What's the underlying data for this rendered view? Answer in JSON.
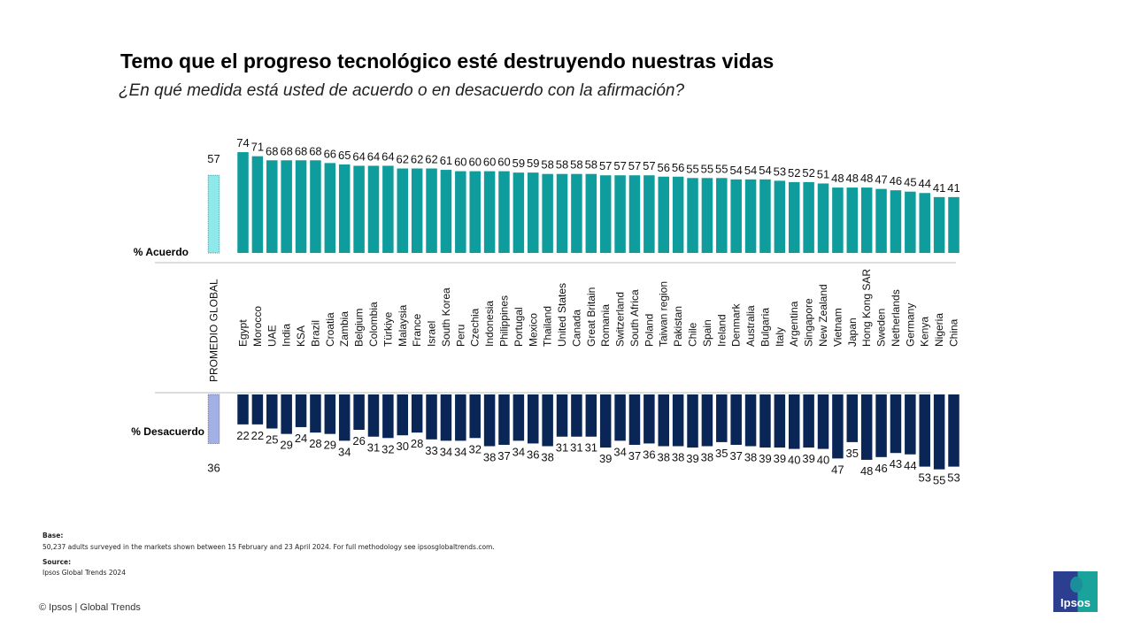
{
  "header": {
    "title": "Temo que el progreso tecnológico esté destruyendo nuestras vidas",
    "subtitle": "¿En qué medida está usted de acuerdo o en desacuerdo con la afirmación?"
  },
  "chart_data": {
    "type": "bar",
    "global_label": "PROMEDIO GLOBAL",
    "global": {
      "agree": 57,
      "disagree": 36
    },
    "categories": [
      "Egypt",
      "Morocco",
      "UAE",
      "India",
      "KSA",
      "Brazil",
      "Croatia",
      "Zambia",
      "Belgium",
      "Colombia",
      "Türkiye",
      "Malaysia",
      "France",
      "Israel",
      "South Korea",
      "Peru",
      "Czechia",
      "Indonesia",
      "Philippines",
      "Portugal",
      "Mexico",
      "Thailand",
      "United States",
      "Canada",
      "Great Britain",
      "Romania",
      "Switzerland",
      "South Africa",
      "Poland",
      "Taiwan region",
      "Pakistan",
      "Chile",
      "Spain",
      "Ireland",
      "Denmark",
      "Australia",
      "Bulgaria",
      "Italy",
      "Argentina",
      "Singapore",
      "New Zealand",
      "Vietnam",
      "Japan",
      "Hong Kong SAR",
      "Sweden",
      "Netherlands",
      "Germany",
      "Kenya",
      "Nigeria",
      "China"
    ],
    "series": [
      {
        "name": "% Acuerdo",
        "values": [
          74,
          71,
          68,
          68,
          68,
          68,
          66,
          65,
          64,
          64,
          64,
          62,
          62,
          62,
          61,
          60,
          60,
          60,
          60,
          59,
          59,
          58,
          58,
          58,
          58,
          57,
          57,
          57,
          57,
          56,
          56,
          55,
          55,
          55,
          54,
          54,
          54,
          53,
          52,
          52,
          51,
          48,
          48,
          48,
          47,
          46,
          45,
          44,
          41,
          41
        ]
      },
      {
        "name": "% Desacuerdo",
        "values": [
          22,
          22,
          25,
          29,
          24,
          28,
          29,
          34,
          26,
          31,
          32,
          30,
          28,
          33,
          34,
          34,
          32,
          38,
          37,
          34,
          36,
          38,
          31,
          31,
          31,
          39,
          34,
          37,
          36,
          38,
          38,
          39,
          38,
          35,
          37,
          38,
          39,
          39,
          40,
          39,
          40,
          47,
          35,
          48,
          46,
          43,
          44,
          53,
          55,
          53
        ]
      }
    ],
    "colors": {
      "agree": "#0e9c9c",
      "agree_global": "#8fe8ea",
      "disagree": "#0a2657",
      "disagree_global": "#a3b0e6"
    }
  },
  "footer": {
    "base_label": "Base:",
    "base_text": "50,237 adults surveyed in the markets shown between 15 February and 23 April 2024. For full methodology see ipsosglobaltrends.com.",
    "source_label": "Source:",
    "source_text": "Ipsos Global Trends 2024",
    "copyright": "© Ipsos | Global Trends",
    "logo_text": "Ipsos"
  }
}
